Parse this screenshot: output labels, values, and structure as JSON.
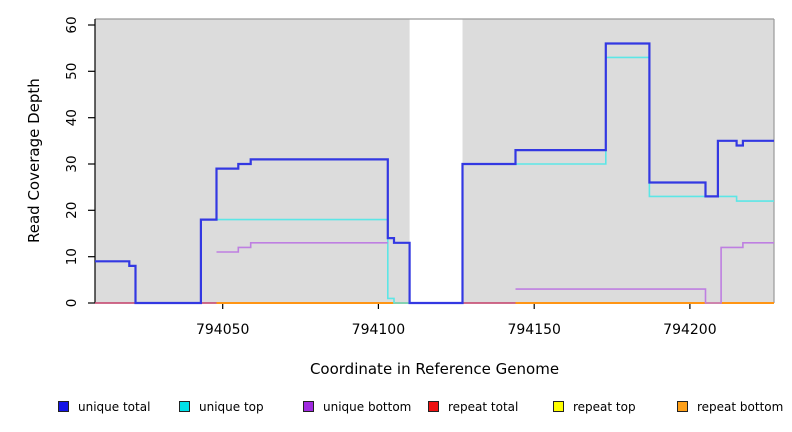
{
  "chart_data": {
    "type": "line",
    "subtype": "step-coverage",
    "title": "",
    "xlabel": "Coordinate in Reference Genome",
    "ylabel": "Read Coverage Depth",
    "x_domain": [
      794009,
      794227
    ],
    "y_domain": [
      0,
      60
    ],
    "x_ticks": [
      794050,
      794100,
      794150,
      794200
    ],
    "y_ticks": [
      0,
      10,
      20,
      30,
      40,
      50,
      60
    ],
    "grid": false,
    "colors": {
      "panel_background": "#dcdcdc",
      "panel_border": "#999999",
      "axis": "#000000",
      "gap_fill": "#ffffff"
    },
    "gap_region": {
      "start": 794110,
      "end": 794127
    },
    "series": [
      {
        "name": "repeat total",
        "id": "repeat-total",
        "line_color": "#d6517b",
        "width": 1.6,
        "segments": [
          {
            "points": [
              [
                794009,
                0
              ]
            ],
            "end": 794110
          },
          {
            "points": [
              [
                794127,
                0
              ]
            ],
            "end": 794227
          }
        ]
      },
      {
        "name": "repeat top",
        "id": "repeat-top",
        "line_color": "#ffe800",
        "width": 1.6,
        "segments": [
          {
            "points": [
              [
                794048,
                0
              ]
            ],
            "end": 794110
          },
          {
            "points": [
              [
                794144,
                0
              ]
            ],
            "end": 794227
          }
        ]
      },
      {
        "name": "repeat bottom",
        "id": "repeat-bottom",
        "line_color": "#ff9514",
        "width": 2,
        "segments": [
          {
            "points": [
              [
                794048,
                0
              ]
            ],
            "end": 794110
          },
          {
            "points": [
              [
                794144,
                0
              ]
            ],
            "end": 794227
          }
        ]
      },
      {
        "name": "unique top",
        "id": "unique-top",
        "line_color": "#5ce6e6",
        "width": 1.6,
        "segments": [
          {
            "points": [
              [
                794043,
                18
              ],
              [
                794103,
                1
              ],
              [
                794105,
                0
              ]
            ],
            "end": 794110
          },
          {
            "points": [
              [
                794127,
                30
              ],
              [
                794173,
                53
              ],
              [
                794187,
                23
              ],
              [
                794215,
                22
              ]
            ],
            "end": 794227
          }
        ]
      },
      {
        "name": "unique bottom",
        "id": "unique-bottom",
        "line_color": "#be7fe1",
        "width": 1.6,
        "segments": [
          {
            "points": [
              [
                794048,
                11
              ],
              [
                794055,
                12
              ],
              [
                794059,
                13
              ]
            ],
            "end": 794103
          },
          {
            "points": [
              [
                794144,
                3
              ],
              [
                794205,
                0
              ],
              [
                794210,
                12
              ],
              [
                794217,
                13
              ]
            ],
            "end": 794227
          }
        ]
      },
      {
        "name": "unique total",
        "id": "unique-total",
        "line_color": "#3338e2",
        "width": 2.2,
        "segments": [
          {
            "points": [
              [
                794009,
                9
              ],
              [
                794020,
                8
              ],
              [
                794022,
                0
              ],
              [
                794043,
                18
              ],
              [
                794048,
                29
              ],
              [
                794055,
                30
              ],
              [
                794059,
                31
              ],
              [
                794103,
                14
              ],
              [
                794105,
                13
              ],
              [
                794110,
                0
              ],
              [
                794127,
                30
              ],
              [
                794144,
                33
              ],
              [
                794173,
                56
              ],
              [
                794187,
                26
              ],
              [
                794205,
                23
              ],
              [
                794209,
                35
              ],
              [
                794215,
                34
              ],
              [
                794217,
                35
              ]
            ],
            "end": 794227
          }
        ]
      }
    ]
  },
  "legend": {
    "items": [
      {
        "label": "unique total",
        "color": "#1414e6"
      },
      {
        "label": "unique top",
        "color": "#00e0e8"
      },
      {
        "label": "unique bottom",
        "color": "#a02be0"
      },
      {
        "label": "repeat total",
        "color": "#ee1111"
      },
      {
        "label": "repeat top",
        "color": "#ffff00"
      },
      {
        "label": "repeat bottom",
        "color": "#ffa018"
      }
    ]
  }
}
